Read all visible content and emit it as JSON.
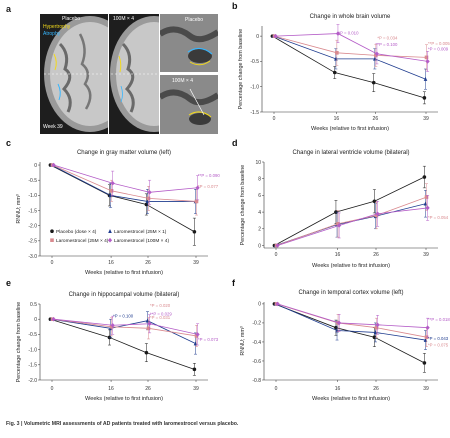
{
  "figure": {
    "caption": "Fig. 3 | Volumetric MRI assessments of AD patients treated with laromestrocel versus placebo."
  },
  "panel_a": {
    "letter": "a",
    "labels": {
      "placebo_top": "Placebo",
      "dose_top": "100M × 4",
      "hypertrophy": "Hypertrophy",
      "atrophy": "Atrophy",
      "week": "Week 39",
      "placebo_inset": "Placebo",
      "dose_inset": "100M × 4"
    }
  },
  "legend": {
    "items": [
      {
        "label": "Placebo (dose × 4)",
        "color": "#1a1a1a",
        "marker": "circle"
      },
      {
        "label": "Laromestrocel (25M × 1)",
        "color": "#1f3c8f",
        "marker": "triangle"
      },
      {
        "label": "Laromestrocel (25M × 4)",
        "color": "#d98a8f",
        "marker": "square"
      },
      {
        "label": "Laromestrocel (100M × 4)",
        "color": "#b45cc7",
        "marker": "diamond"
      }
    ]
  },
  "chart_data": [
    {
      "id": "b",
      "letter": "b",
      "type": "line",
      "title": "Change in whole brain volume",
      "xlabel": "Weeks (relative to first infusion)",
      "ylabel": "Percentage change from baseline",
      "x": [
        0,
        16,
        26,
        39
      ],
      "xticks": [
        "0",
        "16",
        "26",
        "39"
      ],
      "ylim": [
        -1.5,
        0.2
      ],
      "yticks": [
        0,
        -0.5,
        -1.0,
        -1.5
      ],
      "ytick_labels": [
        "0",
        "-0.5",
        "-1.0",
        "-1.5"
      ],
      "series": [
        {
          "name": "Placebo (dose × 4)",
          "values": [
            0,
            -0.72,
            -0.92,
            -1.22
          ],
          "err": [
            0,
            0.12,
            0.18,
            0.12
          ]
        },
        {
          "name": "Laromestrocel (25M × 1)",
          "values": [
            0,
            -0.45,
            -0.45,
            -0.85
          ],
          "err": [
            0,
            0.2,
            0.2,
            0.2
          ]
        },
        {
          "name": "Laromestrocel (25M × 4)",
          "values": [
            0,
            -0.33,
            -0.38,
            -0.42
          ],
          "err": [
            0,
            0.25,
            0.22,
            0.25
          ]
        },
        {
          "name": "Laromestrocel (100M × 4)",
          "values": [
            0,
            0.05,
            -0.35,
            -0.5
          ],
          "err": [
            0,
            0.18,
            0.2,
            0.2
          ]
        }
      ],
      "annotations": [
        {
          "text": "*P = 0.010",
          "x": 16,
          "y": 0.03,
          "series": 3
        },
        {
          "text": "*P = 0.034",
          "x": 26,
          "y": -0.07,
          "series": 2
        },
        {
          "text": "*P = 0.100",
          "x": 26,
          "y": -0.2,
          "series": 3
        },
        {
          "text": "**P = 0.005",
          "x": 39,
          "y": -0.18,
          "series": 2
        },
        {
          "text": "*P = 0.009",
          "x": 39,
          "y": -0.28,
          "series": 3
        }
      ]
    },
    {
      "id": "c",
      "letter": "c",
      "type": "line",
      "title": "Change in gray matter volume (left)",
      "xlabel": "Weeks (relative to first infusion)",
      "ylabel": "RNNU; mm³",
      "x": [
        0,
        16,
        26,
        39
      ],
      "xticks": [
        "0",
        "16",
        "26",
        "39"
      ],
      "ylim": [
        -3.0,
        0.1
      ],
      "yticks": [
        0,
        -0.5,
        -1.0,
        -1.5,
        -2.0,
        -2.5,
        -3.0
      ],
      "ytick_labels": [
        "0",
        "-0.5",
        "-1.0",
        "-1.5",
        "-2.0",
        "-2.5",
        "-3.0"
      ],
      "series": [
        {
          "name": "Placebo (dose × 4)",
          "values": [
            0,
            -1.0,
            -1.3,
            -2.2
          ],
          "err": [
            0,
            0.35,
            0.35,
            0.45
          ]
        },
        {
          "name": "Laromestrocel (25M × 1)",
          "values": [
            0,
            -1.0,
            -1.2,
            -1.2
          ],
          "err": [
            0,
            0.4,
            0.4,
            0.4
          ]
        },
        {
          "name": "Laromestrocel (25M × 4)",
          "values": [
            0,
            -0.85,
            -1.1,
            -1.2
          ],
          "err": [
            0,
            0.35,
            0.4,
            0.45
          ]
        },
        {
          "name": "Laromestrocel (100M × 4)",
          "values": [
            0,
            -0.6,
            -0.9,
            -0.75
          ],
          "err": [
            0,
            0.4,
            0.4,
            0.4
          ]
        }
      ],
      "annotations": [
        {
          "text": "**P = 0.090",
          "x": 39,
          "y": -0.4,
          "series": 3
        },
        {
          "text": "*P = 0.077",
          "x": 39,
          "y": -0.75,
          "series": 2
        }
      ]
    },
    {
      "id": "d",
      "letter": "d",
      "type": "line",
      "title": "Change in lateral ventricle volume (bilateral)",
      "xlabel": "Weeks (relative to first infusion)",
      "ylabel": "Percentage change from baseline",
      "x": [
        0,
        16,
        26,
        39
      ],
      "xticks": [
        "0",
        "16",
        "26",
        "39"
      ],
      "ylim": [
        -0.3,
        10
      ],
      "yticks": [
        0,
        2,
        4,
        6,
        8,
        10
      ],
      "ytick_labels": [
        "0",
        "2",
        "4",
        "6",
        "8",
        "10"
      ],
      "series": [
        {
          "name": "Placebo (dose × 4)",
          "values": [
            0,
            4.0,
            5.3,
            8.2
          ],
          "err": [
            0,
            1.4,
            1.4,
            1.3
          ]
        },
        {
          "name": "Laromestrocel (25M × 1)",
          "values": [
            0,
            2.5,
            3.5,
            5.0
          ],
          "err": [
            0,
            1.5,
            1.5,
            1.6
          ]
        },
        {
          "name": "Laromestrocel (25M × 4)",
          "values": [
            0,
            2.6,
            3.6,
            5.8
          ],
          "err": [
            0,
            1.6,
            1.6,
            1.6
          ]
        },
        {
          "name": "Laromestrocel (100M × 4)",
          "values": [
            0,
            2.4,
            3.8,
            4.5
          ],
          "err": [
            0,
            1.5,
            1.5,
            1.5
          ]
        }
      ],
      "annotations": [
        {
          "text": "*P = 0.054",
          "x": 39,
          "y": 3.2,
          "series": 2
        }
      ]
    },
    {
      "id": "e",
      "letter": "e",
      "type": "line",
      "title": "Change in hippocampal volume (bilateral)",
      "xlabel": "Weeks (relative to first infusion)",
      "ylabel": "Percentage change from baseline",
      "x": [
        0,
        16,
        26,
        39
      ],
      "xticks": [
        "0",
        "16",
        "26",
        "39"
      ],
      "ylim": [
        -2.0,
        0.5
      ],
      "yticks": [
        0.5,
        0,
        -0.5,
        -1.0,
        -1.5,
        -2.0
      ],
      "ytick_labels": [
        "0.5",
        "0",
        "-0.5",
        "-1.0",
        "-1.5",
        "-2.0"
      ],
      "series": [
        {
          "name": "Placebo (dose × 4)",
          "values": [
            0,
            -0.6,
            -1.1,
            -1.65
          ],
          "err": [
            0,
            0.25,
            0.3,
            0.2
          ]
        },
        {
          "name": "Laromestrocel (25M × 1)",
          "values": [
            0,
            -0.3,
            -0.05,
            -0.8
          ],
          "err": [
            0,
            0.3,
            0.3,
            0.35
          ]
        },
        {
          "name": "Laromestrocel (25M × 4)",
          "values": [
            0,
            -0.25,
            -0.3,
            -0.55
          ],
          "err": [
            0,
            0.3,
            0.35,
            0.35
          ]
        },
        {
          "name": "Laromestrocel (100M × 4)",
          "values": [
            0,
            -0.2,
            -0.15,
            -0.5
          ],
          "err": [
            0,
            0.3,
            0.3,
            0.35
          ]
        }
      ],
      "annotations": [
        {
          "text": "*P = 0.100",
          "x": 16,
          "y": 0.06,
          "series": 1
        },
        {
          "text": "*P = 0.020",
          "x": 26,
          "y": 0.4,
          "series": 2
        },
        {
          "text": "**P = 0.029",
          "x": 26,
          "y": 0.12,
          "series": 3
        },
        {
          "text": "*P = 0.031",
          "x": 26,
          "y": 0.0,
          "series": 2
        },
        {
          "text": "*P = 0.073",
          "x": 39,
          "y": -0.72,
          "series": 3
        }
      ]
    },
    {
      "id": "f",
      "letter": "f",
      "type": "line",
      "title": "Change in temporal cortex volume (left)",
      "xlabel": "Weeks (relative to first infusion)",
      "ylabel": "RNNU; mm³",
      "x": [
        0,
        16,
        26,
        39
      ],
      "xticks": [
        "0",
        "16",
        "26",
        "39"
      ],
      "ylim": [
        -0.8,
        0.02
      ],
      "yticks": [
        0,
        -0.2,
        -0.4,
        -0.6,
        -0.8
      ],
      "ytick_labels": [
        "0",
        "-0.2",
        "-0.4",
        "-0.6",
        "-0.8"
      ],
      "series": [
        {
          "name": "Placebo (dose × 4)",
          "values": [
            0,
            -0.25,
            -0.35,
            -0.62
          ],
          "err": [
            0,
            0.08,
            0.1,
            0.1
          ]
        },
        {
          "name": "Laromestrocel (25M × 1)",
          "values": [
            0,
            -0.28,
            -0.3,
            -0.38
          ],
          "err": [
            0,
            0.1,
            0.1,
            0.1
          ]
        },
        {
          "name": "Laromestrocel (25M × 4)",
          "values": [
            0,
            -0.2,
            -0.25,
            -0.35
          ],
          "err": [
            0,
            0.09,
            0.1,
            0.1
          ]
        },
        {
          "name": "Laromestrocel (100M × 4)",
          "values": [
            0,
            -0.2,
            -0.22,
            -0.25
          ],
          "err": [
            0,
            0.09,
            0.1,
            0.1
          ]
        }
      ],
      "annotations": [
        {
          "text": "**P = 0.018",
          "x": 39,
          "y": -0.18,
          "series": 3
        },
        {
          "text": "*P = 0.043",
          "x": 39,
          "y": -0.38,
          "series": 1
        },
        {
          "text": "*P = 0.075",
          "x": 39,
          "y": -0.45,
          "series": 2
        }
      ]
    }
  ]
}
